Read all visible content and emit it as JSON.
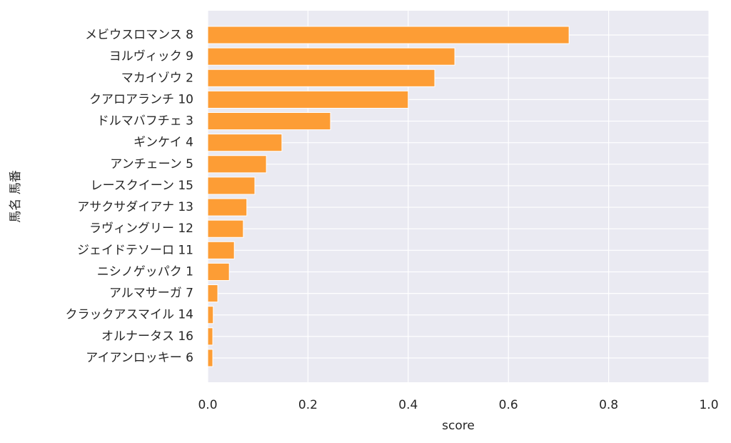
{
  "chart_data": {
    "type": "barh",
    "categories": [
      "メビウスロマンス 8",
      "ヨルヴィック 9",
      "マカイゾウ 2",
      "クアロアランチ 10",
      "ドルマバフチェ 3",
      "ギンケイ 4",
      "アンチェーン 5",
      "レースクイーン 15",
      "アサクサダイアナ 13",
      "ラヴィングリー 12",
      "ジェイドテソーロ 11",
      "ニシノゲッパク 1",
      "アルマサーガ 7",
      "クラックアスマイル 14",
      "オルナータス 16",
      "アイアンロッキー 6"
    ],
    "values": [
      0.721,
      0.493,
      0.453,
      0.4,
      0.245,
      0.148,
      0.117,
      0.094,
      0.078,
      0.071,
      0.053,
      0.043,
      0.02,
      0.011,
      0.01,
      0.01
    ],
    "color": "#fd9d35",
    "xlim": [
      0,
      1
    ],
    "xticks": [
      {
        "value": 0,
        "label": "0.0"
      },
      0.2,
      0.4,
      0.6,
      0.8,
      {
        "value": 1,
        "label": "1.0"
      }
    ],
    "xlabel": "score",
    "ylabel": "馬名 馬番",
    "grid": true
  }
}
